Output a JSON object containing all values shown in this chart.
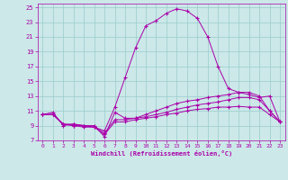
{
  "xlabel": "Windchill (Refroidissement éolien,°C)",
  "background_color": "#cce8e8",
  "grid_color": "#99cccc",
  "line_color": "#aa00aa",
  "x_ticks": [
    0,
    1,
    2,
    3,
    4,
    5,
    6,
    7,
    8,
    9,
    10,
    11,
    12,
    13,
    14,
    15,
    16,
    17,
    18,
    19,
    20,
    21,
    22,
    23
  ],
  "y_ticks": [
    7,
    9,
    11,
    13,
    15,
    17,
    19,
    21,
    23,
    25
  ],
  "xlim": [
    -0.5,
    23.5
  ],
  "ylim": [
    7,
    25.5
  ],
  "series": [
    {
      "x": [
        0,
        1,
        2,
        3,
        4,
        5,
        6,
        7,
        8,
        9,
        10,
        11,
        12,
        13,
        14,
        15,
        16,
        17,
        18,
        19,
        20,
        21,
        22,
        23
      ],
      "y": [
        10.5,
        10.8,
        9.0,
        9.2,
        9.0,
        8.8,
        8.3,
        11.5,
        15.5,
        19.5,
        22.5,
        23.2,
        24.2,
        24.8,
        24.5,
        23.5,
        21.0,
        17.0,
        14.0,
        13.5,
        13.2,
        12.8,
        13.0,
        9.5
      ]
    },
    {
      "x": [
        0,
        1,
        2,
        3,
        4,
        5,
        6,
        7,
        8,
        9,
        10,
        11,
        12,
        13,
        14,
        15,
        16,
        17,
        18,
        19,
        20,
        21,
        22,
        23
      ],
      "y": [
        10.5,
        10.5,
        9.2,
        9.2,
        9.0,
        9.0,
        7.5,
        10.8,
        10.0,
        10.0,
        10.5,
        11.0,
        11.5,
        12.0,
        12.3,
        12.5,
        12.8,
        13.0,
        13.2,
        13.5,
        13.5,
        13.0,
        11.0,
        9.5
      ]
    },
    {
      "x": [
        0,
        1,
        2,
        3,
        4,
        5,
        6,
        7,
        8,
        9,
        10,
        11,
        12,
        13,
        14,
        15,
        16,
        17,
        18,
        19,
        20,
        21,
        22,
        23
      ],
      "y": [
        10.5,
        10.5,
        9.2,
        9.0,
        9.0,
        8.8,
        8.0,
        9.8,
        9.8,
        10.0,
        10.2,
        10.5,
        10.8,
        11.2,
        11.5,
        11.8,
        12.0,
        12.2,
        12.5,
        12.8,
        12.8,
        12.5,
        11.0,
        9.5
      ]
    },
    {
      "x": [
        0,
        1,
        2,
        3,
        4,
        5,
        6,
        7,
        8,
        9,
        10,
        11,
        12,
        13,
        14,
        15,
        16,
        17,
        18,
        19,
        20,
        21,
        22,
        23
      ],
      "y": [
        10.5,
        10.5,
        9.2,
        9.0,
        8.8,
        8.8,
        7.8,
        9.5,
        9.5,
        9.8,
        10.0,
        10.2,
        10.5,
        10.7,
        11.0,
        11.2,
        11.3,
        11.5,
        11.5,
        11.6,
        11.5,
        11.5,
        10.5,
        9.5
      ]
    }
  ]
}
